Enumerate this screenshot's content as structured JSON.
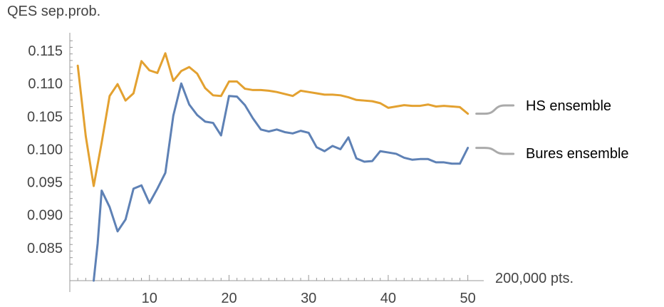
{
  "chart_data": {
    "type": "line",
    "ylabel": "QES sep.prob.",
    "xlabel": "200,000 pts.",
    "xlim": [
      0,
      52
    ],
    "ylim": [
      0.08,
      0.1175
    ],
    "x_ticks": [
      10,
      20,
      30,
      40,
      50
    ],
    "y_ticks": [
      0.085,
      0.09,
      0.095,
      0.1,
      0.105,
      0.11,
      0.115
    ],
    "y_tick_labels": [
      "0.085",
      "0.090",
      "0.095",
      "0.100",
      "0.105",
      "0.110",
      "0.115"
    ],
    "legend_placement": "right",
    "series": [
      {
        "name": "HS ensemble",
        "color": "#E3A130",
        "x": [
          1,
          2,
          3,
          4,
          5,
          6,
          7,
          8,
          9,
          10,
          11,
          12,
          13,
          14,
          15,
          16,
          17,
          18,
          19,
          20,
          21,
          22,
          23,
          24,
          25,
          26,
          27,
          28,
          29,
          30,
          31,
          32,
          33,
          34,
          35,
          36,
          37,
          38,
          39,
          40,
          41,
          42,
          43,
          44,
          45,
          46,
          47,
          48,
          49,
          50
        ],
        "values": [
          0.1127,
          0.102,
          0.0944,
          0.101,
          0.1081,
          0.1099,
          0.1074,
          0.1085,
          0.1134,
          0.112,
          0.1116,
          0.1146,
          0.1104,
          0.1119,
          0.1125,
          0.1115,
          0.1093,
          0.1082,
          0.1081,
          0.1103,
          0.1103,
          0.1092,
          0.109,
          0.109,
          0.1089,
          0.1087,
          0.1084,
          0.1081,
          0.1089,
          0.1087,
          0.1085,
          0.1083,
          0.1083,
          0.1082,
          0.1079,
          0.1075,
          0.1074,
          0.1073,
          0.107,
          0.1063,
          0.1065,
          0.1067,
          0.1066,
          0.1066,
          0.1068,
          0.1065,
          0.1066,
          0.1065,
          0.1064,
          0.1054
        ]
      },
      {
        "name": "Bures ensemble",
        "color": "#5E81B5",
        "x": [
          3,
          3.5,
          4,
          5,
          6,
          7,
          8,
          9,
          10,
          11,
          12,
          13,
          14,
          15,
          16,
          17,
          18,
          19,
          20,
          21,
          22,
          23,
          24,
          25,
          26,
          27,
          28,
          29,
          30,
          31,
          32,
          33,
          34,
          35,
          36,
          37,
          38,
          39,
          40,
          41,
          42,
          43,
          44,
          45,
          46,
          47,
          48,
          49,
          50
        ],
        "values": [
          0.08,
          0.0857,
          0.0937,
          0.0912,
          0.0875,
          0.0893,
          0.094,
          0.0945,
          0.0918,
          0.094,
          0.0964,
          0.1051,
          0.11,
          0.1068,
          0.1052,
          0.1042,
          0.104,
          0.1021,
          0.1081,
          0.108,
          0.1067,
          0.1047,
          0.103,
          0.1027,
          0.103,
          0.1026,
          0.1024,
          0.1028,
          0.1025,
          0.1003,
          0.0997,
          0.1005,
          0.1,
          0.1018,
          0.0986,
          0.0981,
          0.0982,
          0.0997,
          0.0995,
          0.0993,
          0.0987,
          0.0984,
          0.0985,
          0.0985,
          0.098,
          0.098,
          0.0978,
          0.0978,
          0.1002
        ]
      }
    ]
  }
}
